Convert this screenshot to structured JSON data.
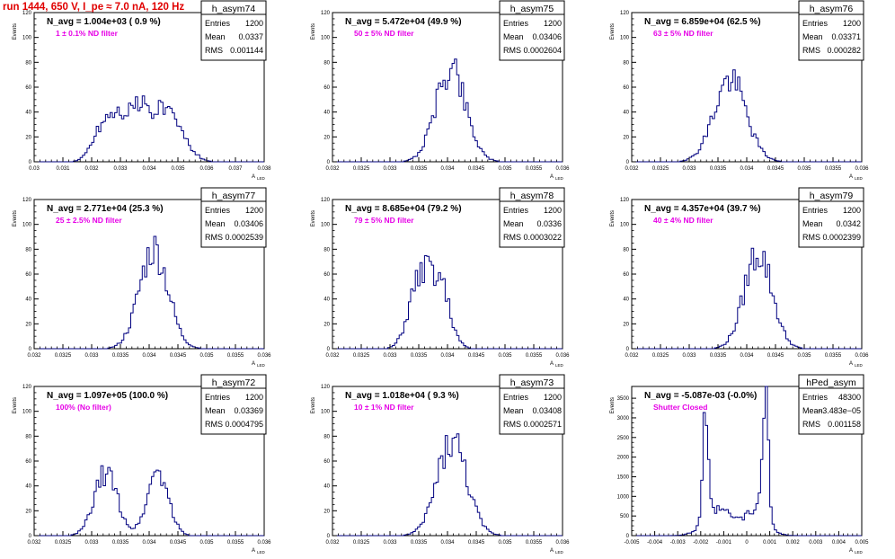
{
  "title": "run 1444,   650 V, I_pe ≈ 7.0 nA, 120 Hz",
  "colors": {
    "title": "#e00000",
    "histogram": "#000080",
    "annotation": "#e600e6",
    "axis": "#000000"
  },
  "stat_labels": {
    "entries": "Entries",
    "mean": "Mean",
    "rms": "RMS"
  },
  "chart_data": [
    {
      "type": "bar",
      "name": "h_asym74",
      "n_avg": "N_avg = 1.004e+03 ( 0.9 %)",
      "note": "1 ± 0.1% ND filter",
      "stats": {
        "entries": "1200",
        "mean": "0.0337",
        "rms": "0.001144"
      },
      "ylabel": "Events",
      "xlabel": "A",
      "xlim": [
        0.03,
        0.038
      ],
      "ylim": [
        0,
        120
      ],
      "xticks": [
        0.03,
        0.031,
        0.032,
        0.033,
        0.034,
        0.035,
        0.036,
        0.037,
        0.038
      ],
      "xtick_labels": [
        "0.03",
        "0.031",
        "0.032",
        "0.033",
        "0.034",
        "0.035",
        "0.036",
        "0.037",
        "0.038"
      ],
      "yticks": [
        0,
        20,
        40,
        60,
        80,
        100,
        120
      ],
      "peaks": [
        [
          0.0322,
          10,
          0.0003
        ],
        [
          0.0326,
          22,
          0.0004
        ],
        [
          0.0331,
          25,
          0.0004
        ],
        [
          0.0336,
          22,
          0.0003
        ],
        [
          0.034,
          18,
          0.0003
        ],
        [
          0.0345,
          32,
          0.0004
        ],
        [
          0.0351,
          15,
          0.0004
        ]
      ],
      "seed": 74,
      "nbins": 100
    },
    {
      "type": "bar",
      "name": "h_asym75",
      "n_avg": "N_avg = 5.472e+04 (49.9 %)",
      "note": "50 ± 5% ND filter",
      "stats": {
        "entries": "1200",
        "mean": "0.03406",
        "rms": "0.0002604"
      },
      "ylabel": "Events",
      "xlabel": "A",
      "xlim": [
        0.032,
        0.036
      ],
      "ylim": [
        0,
        120
      ],
      "xticks": [
        0.032,
        0.0325,
        0.033,
        0.0335,
        0.034,
        0.0345,
        0.035,
        0.0355,
        0.036
      ],
      "xtick_labels": [
        "0.032",
        "0.0325",
        "0.033",
        "0.0335",
        "0.034",
        "0.0345",
        "0.035",
        "0.0355",
        "0.036"
      ],
      "yticks": [
        0,
        20,
        40,
        60,
        80,
        100,
        120
      ],
      "peaks": [
        [
          0.03406,
          76,
          0.00026
        ]
      ],
      "seed": 75,
      "nbins": 100
    },
    {
      "type": "bar",
      "name": "h_asym76",
      "n_avg": "N_avg = 6.859e+04 (62.5 %)",
      "note": "63 ± 5% ND filter",
      "stats": {
        "entries": "1200",
        "mean": "0.03371",
        "rms": "0.000282"
      },
      "ylabel": "Events",
      "xlabel": "A",
      "xlim": [
        0.032,
        0.036
      ],
      "ylim": [
        0,
        120
      ],
      "xticks": [
        0.032,
        0.0325,
        0.033,
        0.0335,
        0.034,
        0.0345,
        0.035,
        0.0355,
        0.036
      ],
      "xtick_labels": [
        "0.032",
        "0.0325",
        "0.033",
        "0.0335",
        "0.034",
        "0.0345",
        "0.035",
        "0.0355",
        "0.036"
      ],
      "yticks": [
        0,
        20,
        40,
        60,
        80,
        100,
        120
      ],
      "peaks": [
        [
          0.03371,
          66,
          0.00028
        ]
      ],
      "seed": 76,
      "nbins": 100
    },
    {
      "type": "bar",
      "name": "h_asym77",
      "n_avg": "N_avg = 2.771e+04 (25.3 %)",
      "note": "25 ± 2.5% ND filter",
      "stats": {
        "entries": "1200",
        "mean": "0.03406",
        "rms": "0.0002539"
      },
      "ylabel": "Events",
      "xlabel": "A",
      "xlim": [
        0.032,
        0.036
      ],
      "ylim": [
        0,
        120
      ],
      "xticks": [
        0.032,
        0.0325,
        0.033,
        0.0335,
        0.034,
        0.0345,
        0.035,
        0.0355,
        0.036
      ],
      "xtick_labels": [
        "0.032",
        "0.0325",
        "0.033",
        "0.0335",
        "0.034",
        "0.0345",
        "0.035",
        "0.0355",
        "0.036"
      ],
      "yticks": [
        0,
        20,
        40,
        60,
        80,
        100,
        120
      ],
      "peaks": [
        [
          0.03408,
          80,
          0.00025
        ]
      ],
      "seed": 77,
      "nbins": 100
    },
    {
      "type": "bar",
      "name": "h_asym78",
      "n_avg": "N_avg = 8.685e+04 (79.2 %)",
      "note": "79 ± 5% ND filter",
      "stats": {
        "entries": "1200",
        "mean": "0.0336",
        "rms": "0.0003022"
      },
      "ylabel": "Events",
      "xlabel": "A",
      "xlim": [
        0.032,
        0.036
      ],
      "ylim": [
        0,
        120
      ],
      "xticks": [
        0.032,
        0.0325,
        0.033,
        0.0335,
        0.034,
        0.0345,
        0.035,
        0.0355,
        0.036
      ],
      "xtick_labels": [
        "0.032",
        "0.0325",
        "0.033",
        "0.0335",
        "0.034",
        "0.0345",
        "0.035",
        "0.0355",
        "0.036"
      ],
      "yticks": [
        0,
        20,
        40,
        60,
        80,
        100,
        120
      ],
      "peaks": [
        [
          0.0335,
          50,
          0.00018
        ],
        [
          0.03385,
          52,
          0.00018
        ]
      ],
      "seed": 78,
      "nbins": 100
    },
    {
      "type": "bar",
      "name": "h_asym79",
      "n_avg": "N_avg = 4.357e+04 (39.7 %)",
      "note": "40 ± 4% ND filter",
      "stats": {
        "entries": "1200",
        "mean": "0.0342",
        "rms": "0.0002399"
      },
      "ylabel": "Events",
      "xlabel": "A",
      "xlim": [
        0.032,
        0.036
      ],
      "ylim": [
        0,
        120
      ],
      "xticks": [
        0.032,
        0.0325,
        0.033,
        0.0335,
        0.034,
        0.0345,
        0.035,
        0.0355,
        0.036
      ],
      "xtick_labels": [
        "0.032",
        "0.0325",
        "0.033",
        "0.0335",
        "0.034",
        "0.0345",
        "0.035",
        "0.0355",
        "0.036"
      ],
      "yticks": [
        0,
        20,
        40,
        60,
        80,
        100,
        120
      ],
      "peaks": [
        [
          0.0342,
          78,
          0.00024
        ]
      ],
      "seed": 79,
      "nbins": 100
    },
    {
      "type": "bar",
      "name": "h_asym72",
      "n_avg": "N_avg = 1.097e+05 (100.0 %)",
      "note": "100% (No filter)",
      "stats": {
        "entries": "1200",
        "mean": "0.03369",
        "rms": "0.0004795"
      },
      "ylabel": "Events",
      "xlabel": "A",
      "xlim": [
        0.032,
        0.036
      ],
      "ylim": [
        0,
        120
      ],
      "xticks": [
        0.032,
        0.0325,
        0.033,
        0.0335,
        0.034,
        0.0345,
        0.035,
        0.0355,
        0.036
      ],
      "xtick_labels": [
        "0.032",
        "0.0325",
        "0.033",
        "0.0335",
        "0.034",
        "0.0345",
        "0.035",
        "0.0355",
        "0.036"
      ],
      "yticks": [
        0,
        20,
        40,
        60,
        80,
        100,
        120
      ],
      "peaks": [
        [
          0.03325,
          50,
          0.0002
        ],
        [
          0.03415,
          52,
          0.00018
        ]
      ],
      "seed": 72,
      "nbins": 100
    },
    {
      "type": "bar",
      "name": "h_asym73",
      "n_avg": "N_avg = 1.018e+04 ( 9.3 %)",
      "note": "10 ± 1% ND filter",
      "stats": {
        "entries": "1200",
        "mean": "0.03408",
        "rms": "0.0002571"
      },
      "ylabel": "Events",
      "xlabel": "A",
      "xlim": [
        0.032,
        0.036
      ],
      "ylim": [
        0,
        120
      ],
      "xticks": [
        0.032,
        0.0325,
        0.033,
        0.0335,
        0.034,
        0.0345,
        0.035,
        0.0355,
        0.036
      ],
      "xtick_labels": [
        "0.032",
        "0.0325",
        "0.033",
        "0.0335",
        "0.034",
        "0.0345",
        "0.035",
        "0.0355",
        "0.036"
      ],
      "yticks": [
        0,
        20,
        40,
        60,
        80,
        100,
        120
      ],
      "peaks": [
        [
          0.03408,
          76,
          0.00026
        ]
      ],
      "seed": 73,
      "nbins": 100
    },
    {
      "type": "bar",
      "name": "hPed_asym",
      "n_avg": "N_avg = -5.087e-03 (-0.0%)",
      "note": "Shutter Closed",
      "stats": {
        "entries": "48300",
        "mean": "−3.483e−05",
        "rms": "0.001158"
      },
      "ylabel": "Events",
      "xlabel": "A",
      "xlim": [
        -0.005,
        0.005
      ],
      "ylim": [
        0,
        3800
      ],
      "xticks": [
        -0.005,
        -0.004,
        -0.003,
        -0.002,
        -0.001,
        0,
        0.001,
        0.002,
        0.003,
        0.004,
        0.005
      ],
      "xtick_labels": [
        "-0.005",
        "-0.004",
        "-0.003",
        "-0.002",
        "-0.001",
        "0",
        "0.001",
        "0.002",
        "0.003",
        "0.004",
        "0.005"
      ],
      "yticks": [
        0,
        500,
        1000,
        1500,
        2000,
        2500,
        3000,
        3500
      ],
      "peaks": [
        [
          -0.0018,
          2500,
          0.00012
        ],
        [
          -0.0012,
          650,
          0.0006
        ],
        [
          0.0008,
          3400,
          0.00013
        ],
        [
          0.0004,
          600,
          0.0005
        ]
      ],
      "seed": 99,
      "nbins": 100
    }
  ]
}
